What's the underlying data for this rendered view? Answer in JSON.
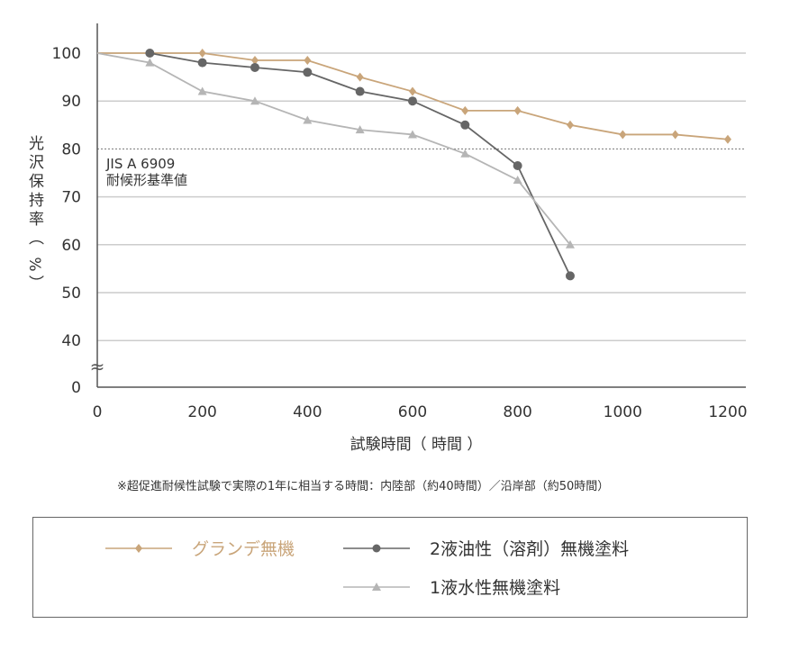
{
  "chart_data": {
    "type": "line",
    "xlabel": "試験時間（ 時間 ）",
    "ylabel": "光沢保持率（ %）",
    "x_ticks": [
      0,
      200,
      400,
      600,
      800,
      1000,
      1200
    ],
    "y_ticks": [
      100,
      90,
      80,
      70,
      60,
      50,
      40,
      0
    ],
    "y_break": "≈",
    "xlim": [
      0,
      1250
    ],
    "ylim": [
      0,
      105
    ],
    "grid": true,
    "reference_line": {
      "value": 80,
      "style": "dotted",
      "label_line1": "JIS A 6909",
      "label_line2": "耐候形基準値"
    },
    "series": [
      {
        "name": "グランデ無機",
        "color": "#c9a57a",
        "marker": "diamond",
        "x": [
          0,
          100,
          200,
          300,
          400,
          500,
          600,
          700,
          800,
          900,
          1000,
          1100,
          1200
        ],
        "y": [
          100,
          100,
          100,
          98.5,
          98.5,
          95,
          92,
          88,
          88,
          85,
          83,
          83,
          82
        ]
      },
      {
        "name": "2液油性（溶剤）無機塗料",
        "color": "#666666",
        "marker": "circle",
        "x": [
          100,
          200,
          300,
          400,
          500,
          600,
          700,
          800,
          900
        ],
        "y": [
          100,
          98,
          97,
          96,
          92,
          90,
          85,
          76.5,
          53.5
        ]
      },
      {
        "name": "1液水性無機塗料",
        "color": "#b5b5b5",
        "marker": "triangle",
        "x": [
          0,
          100,
          200,
          300,
          400,
          500,
          600,
          700,
          800,
          900
        ],
        "y": [
          100,
          98,
          92,
          90,
          86,
          84,
          83,
          79,
          73.5,
          60
        ]
      }
    ],
    "legend_placement": "bottom"
  },
  "note": "※超促進耐候性試験で実際の1年に相当する時間：内陸部（約40時間）／沿岸部（約50時間）",
  "legend_text_colors": {
    "grande": "#c9a57a",
    "other": "#333333"
  }
}
